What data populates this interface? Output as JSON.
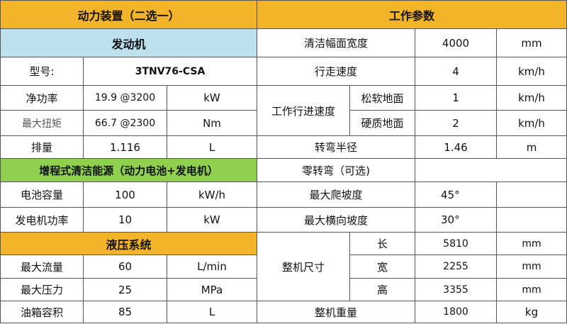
{
  "left": {
    "header": "动力装置（二选一）",
    "engine_section": "发动机",
    "model_label": "型号:",
    "model_value": "3TNV76-CSA",
    "net_power_label": "净功率",
    "net_power_value": "19.9 @3200",
    "net_power_unit": "kW",
    "max_torque_label": "最大扭矩",
    "max_torque_value": "66.7 @2300",
    "max_torque_unit": "Nm",
    "displacement_label": "排量",
    "displacement_value": "1.116",
    "displacement_unit": "L",
    "extended_section": "增程式清洁能源（动力电池+发电机）",
    "battery_label": "电池容量",
    "battery_value": "100",
    "battery_unit": "kW/h",
    "generator_label": "发电机功率",
    "generator_value": "10",
    "generator_unit": "kW",
    "hydraulic_section": "液压系统",
    "max_flow_label": "最大流量",
    "max_flow_value": "60",
    "max_flow_unit": "L/min",
    "max_pressure_label": "最大压力",
    "max_pressure_value": "25",
    "max_pressure_unit": "MPa",
    "tank_label": "油箱容积",
    "tank_value": "85",
    "tank_unit": "L"
  },
  "right": {
    "header": "工作参数",
    "clean_width_label": "清洁幅面宽度",
    "clean_width_value": "4000",
    "clean_width_unit": "mm",
    "travel_speed_label": "行走速度",
    "travel_speed_value": "4",
    "travel_speed_unit": "km/h",
    "work_speed_label": "工作行进速度",
    "soft_ground_label": "松软地面",
    "soft_ground_value": "1",
    "soft_ground_unit": "km/h",
    "hard_ground_label": "硬质地面",
    "hard_ground_value": "2",
    "hard_ground_unit": "km/h",
    "turn_radius_label": "转弯半径",
    "turn_radius_value": "1.46",
    "turn_radius_unit": "m",
    "zero_turn_label": "零转弯（可选)",
    "max_climb_label": "最大爬坡度",
    "max_climb_value": "45°",
    "max_side_slope_label": "最大横向坡度",
    "max_side_slope_value": "30°",
    "dimensions_label": "整机尺寸",
    "length_label": "长",
    "length_value": "5810",
    "length_unit": "mm",
    "width_label": "宽",
    "width_value": "2255",
    "width_unit": "mm",
    "height_label": "高",
    "height_value": "3355",
    "height_unit": "mm",
    "weight_label": "整机重量",
    "weight_value": "1800",
    "weight_unit": "kg"
  }
}
